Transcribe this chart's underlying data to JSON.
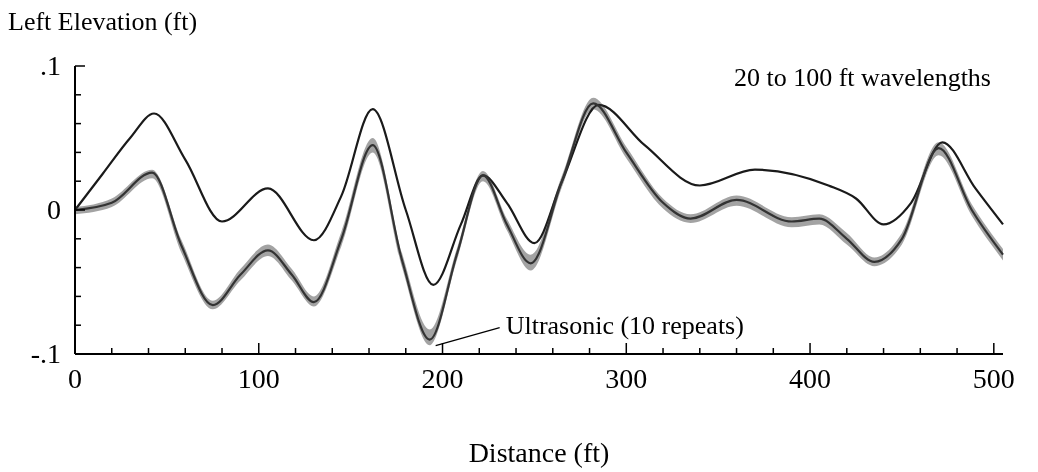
{
  "chart_data": {
    "type": "line",
    "ylabel": "Left Elevation (ft)",
    "xlabel": "Distance (ft)",
    "annotations": [
      "20 to 100 ft wavelengths"
    ],
    "xlim": [
      0,
      505
    ],
    "ylim": [
      -0.1,
      0.1
    ],
    "xticks": [
      0,
      {
        "value": 20,
        "label": null
      },
      {
        "value": 40,
        "label": null
      },
      {
        "value": 60,
        "label": null
      },
      {
        "value": 80,
        "label": null
      },
      100,
      {
        "value": 120,
        "label": null
      },
      {
        "value": 140,
        "label": null
      },
      {
        "value": 160,
        "label": null
      },
      {
        "value": 180,
        "label": null
      },
      200,
      {
        "value": 220,
        "label": null
      },
      {
        "value": 240,
        "label": null
      },
      {
        "value": 260,
        "label": null
      },
      {
        "value": 280,
        "label": null
      },
      300,
      {
        "value": 320,
        "label": null
      },
      {
        "value": 340,
        "label": null
      },
      {
        "value": 360,
        "label": null
      },
      {
        "value": 380,
        "label": null
      },
      400,
      {
        "value": 420,
        "label": null
      },
      {
        "value": 440,
        "label": null
      },
      {
        "value": 460,
        "label": null
      },
      {
        "value": 480,
        "label": null
      },
      500
    ],
    "yticks": [
      {
        "value": -0.1,
        "label": "-.1"
      },
      {
        "value": -0.08,
        "label": null
      },
      {
        "value": -0.06,
        "label": null
      },
      {
        "value": -0.04,
        "label": null
      },
      {
        "value": -0.02,
        "label": null
      },
      0,
      {
        "value": 0.02,
        "label": null
      },
      {
        "value": 0.04,
        "label": null
      },
      {
        "value": 0.06,
        "label": null
      },
      {
        "value": 0.08,
        "label": null
      },
      {
        "value": 0.1,
        "label": ".1"
      }
    ],
    "grid": false,
    "marker": "none",
    "line_style": "solid",
    "series": [
      {
        "color": "#1a1a1a",
        "x": [
          0,
          15,
          30,
          43,
          60,
          80,
          105,
          130,
          145,
          162,
          180,
          195,
          210,
          222,
          235,
          250,
          265,
          285,
          310,
          340,
          370,
          410,
          425,
          440,
          455,
          472,
          490,
          505
        ],
        "values": [
          0,
          0.025,
          0.05,
          0.067,
          0.035,
          -0.008,
          0.015,
          -0.021,
          0.01,
          0.07,
          0.0,
          -0.052,
          -0.01,
          0.024,
          0.005,
          -0.023,
          0.02,
          0.073,
          0.045,
          0.017,
          0.028,
          0.017,
          0.008,
          -0.01,
          0.005,
          0.047,
          0.015,
          -0.01
        ]
      },
      {
        "name": "Ultrasonic (10 repeats)",
        "color": "#333333",
        "x": [
          0,
          20,
          42,
          58,
          75,
          90,
          105,
          118,
          130,
          145,
          162,
          178,
          193,
          208,
          222,
          235,
          248,
          265,
          282,
          300,
          320,
          335,
          360,
          390,
          405,
          420,
          435,
          450,
          470,
          488,
          505
        ],
        "values": [
          0,
          0.005,
          0.026,
          -0.025,
          -0.066,
          -0.045,
          -0.028,
          -0.045,
          -0.064,
          -0.02,
          0.045,
          -0.035,
          -0.09,
          -0.03,
          0.024,
          -0.01,
          -0.037,
          0.02,
          0.074,
          0.04,
          0.005,
          -0.006,
          0.007,
          -0.008,
          -0.006,
          -0.02,
          -0.036,
          -0.02,
          0.043,
          0.0,
          -0.031
        ],
        "lower": [
          -0.003,
          0.002,
          0.022,
          -0.03,
          -0.069,
          -0.049,
          -0.032,
          -0.049,
          -0.067,
          -0.025,
          0.04,
          -0.04,
          -0.094,
          -0.034,
          0.02,
          -0.014,
          -0.042,
          0.016,
          0.07,
          0.036,
          0.001,
          -0.009,
          0.003,
          -0.012,
          -0.01,
          -0.024,
          -0.039,
          -0.024,
          0.038,
          -0.004,
          -0.035
        ],
        "upper": [
          0.002,
          0.008,
          0.028,
          -0.021,
          -0.063,
          -0.041,
          -0.024,
          -0.041,
          -0.06,
          -0.015,
          0.05,
          -0.03,
          -0.083,
          -0.026,
          0.027,
          -0.006,
          -0.031,
          0.024,
          0.078,
          0.044,
          0.008,
          -0.003,
          0.01,
          -0.005,
          -0.003,
          -0.016,
          -0.033,
          -0.016,
          0.047,
          0.004,
          -0.027
        ]
      }
    ]
  }
}
